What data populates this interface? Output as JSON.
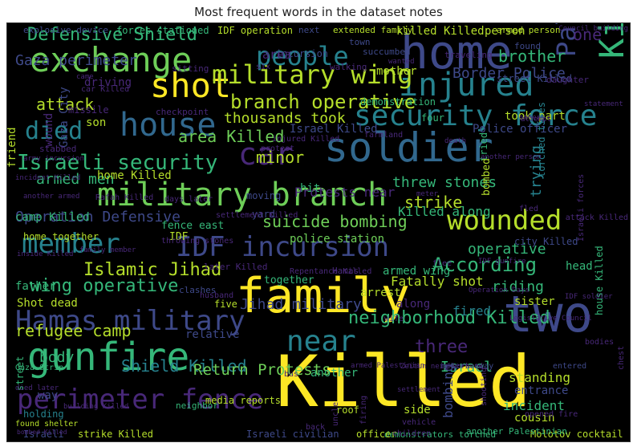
{
  "chart_data": {
    "type": "wordcloud",
    "title": "Most frequent words in the dataset notes",
    "palette": [
      "#fde725",
      "#b5de2b",
      "#6ece58",
      "#35b779",
      "#1f9e89",
      "#26828e",
      "#31688e",
      "#3e4989",
      "#482878",
      "#440154"
    ],
    "words": [
      {
        "text": "Killed",
        "weight": 100,
        "color": "#fde725"
      },
      {
        "text": "soldier",
        "weight": 78,
        "color": "#31688e"
      },
      {
        "text": "home",
        "weight": 72,
        "color": "#3e4989"
      },
      {
        "text": "family",
        "weight": 70,
        "color": "#fde725"
      },
      {
        "text": "gunfire",
        "weight": 62,
        "color": "#35b779"
      },
      {
        "text": "exchange",
        "weight": 62,
        "color": "#6ece58"
      },
      {
        "text": "house",
        "weight": 58,
        "color": "#31688e"
      },
      {
        "text": "two",
        "weight": 58,
        "color": "#3e4989"
      },
      {
        "text": "shot",
        "weight": 56,
        "color": "#fde725"
      },
      {
        "text": "Killed together",
        "weight": 55,
        "color": "#35b779"
      },
      {
        "text": "injured",
        "weight": 52,
        "color": "#26828e"
      },
      {
        "text": "security force",
        "weight": 50,
        "color": "#26828e"
      },
      {
        "text": "military branch",
        "weight": 48,
        "color": "#6ece58"
      },
      {
        "text": "near",
        "weight": 44,
        "color": "#26828e"
      },
      {
        "text": "Palestinian",
        "weight": 42,
        "color": "#3e4989"
      },
      {
        "text": "Hamas military",
        "weight": 40,
        "color": "#3e4989"
      },
      {
        "text": "member",
        "weight": 38,
        "color": "#26828e"
      },
      {
        "text": "IDF incursion",
        "weight": 38,
        "color": "#3e4989"
      },
      {
        "text": "military wing",
        "weight": 36,
        "color": "#b5de2b"
      },
      {
        "text": "perimeter fence",
        "weight": 36,
        "color": "#482878"
      },
      {
        "text": "wounded",
        "weight": 36,
        "color": "#b5de2b"
      },
      {
        "text": "car",
        "weight": 36,
        "color": "#482878"
      },
      {
        "text": "people",
        "weight": 34,
        "color": "#26828e"
      },
      {
        "text": "died",
        "weight": 32,
        "color": "#26828e"
      },
      {
        "text": "Israeli security",
        "weight": 30,
        "color": "#35b779"
      },
      {
        "text": "Defensive Shield",
        "weight": 28,
        "color": "#35b779"
      },
      {
        "text": "branch operative",
        "weight": 26,
        "color": "#b5de2b"
      },
      {
        "text": "Islamic Jihad",
        "weight": 25,
        "color": "#b5de2b"
      },
      {
        "text": "According",
        "weight": 25,
        "color": "#35b779"
      },
      {
        "text": "wing operative",
        "weight": 24,
        "color": "#35b779"
      },
      {
        "text": "refugee camp",
        "weight": 24,
        "color": "#b5de2b"
      },
      {
        "text": "neighborhood Killed",
        "weight": 24,
        "color": "#35b779"
      },
      {
        "text": "Operation Defensive",
        "weight": 23,
        "color": "#3e4989"
      },
      {
        "text": "suicide bombing",
        "weight": 22,
        "color": "#6ece58"
      },
      {
        "text": "area Killed",
        "weight": 22,
        "color": "#6ece58"
      },
      {
        "text": "brother",
        "weight": 22,
        "color": "#35b779"
      },
      {
        "text": "Border Police",
        "weight": 22,
        "color": "#3e4989"
      },
      {
        "text": "three",
        "weight": 22,
        "color": "#482878"
      },
      {
        "text": "Shield Killed",
        "weight": 20,
        "color": "#26828e"
      },
      {
        "text": "Return Protests",
        "weight": 19,
        "color": "#6ece58"
      },
      {
        "text": "one",
        "weight": 22,
        "color": "#482878"
      },
      {
        "text": "strike",
        "weight": 20,
        "color": "#b5de2b"
      },
      {
        "text": "threw stones",
        "weight": 20,
        "color": "#35b779"
      },
      {
        "text": "minor",
        "weight": 20,
        "color": "#b5de2b"
      },
      {
        "text": "Jihad military",
        "weight": 18,
        "color": "#3e4989"
      },
      {
        "text": "Gaza perimeter",
        "weight": 18,
        "color": "#3e4989"
      },
      {
        "text": "attack",
        "weight": 18,
        "color": "#b5de2b"
      },
      {
        "text": "armed men",
        "weight": 18,
        "color": "#35b779"
      },
      {
        "text": "thousands took",
        "weight": 18,
        "color": "#b5de2b"
      },
      {
        "text": "Israel",
        "weight": 18,
        "color": "#35b779"
      },
      {
        "text": "Killed along",
        "weight": 16,
        "color": "#35b779"
      },
      {
        "text": "operative",
        "weight": 18,
        "color": "#35b779"
      },
      {
        "text": "riding",
        "weight": 18,
        "color": "#35b779"
      },
      {
        "text": "body",
        "weight": 18,
        "color": "#35b779"
      },
      {
        "text": "incident",
        "weight": 16,
        "color": "#35b779"
      },
      {
        "text": "standing",
        "weight": 16,
        "color": "#b5de2b"
      },
      {
        "text": "bombing",
        "weight": 16,
        "color": "#3e4989"
      },
      {
        "text": "trying",
        "weight": 18,
        "color": "#26828e"
      },
      {
        "text": "Fatally shot",
        "weight": 14,
        "color": "#b5de2b"
      },
      {
        "text": "fired",
        "weight": 16,
        "color": "#26828e"
      },
      {
        "text": "Police officer",
        "weight": 14,
        "color": "#3e4989"
      },
      {
        "text": "took part",
        "weight": 14,
        "color": "#b5de2b"
      },
      {
        "text": "mother",
        "weight": 14,
        "color": "#b5de2b"
      },
      {
        "text": "person",
        "weight": 14,
        "color": "#b5de2b"
      },
      {
        "text": "demonstration",
        "weight": 12,
        "color": "#35b779"
      },
      {
        "text": "incursion",
        "weight": 12,
        "color": "#3e4989"
      },
      {
        "text": "Israel Killed",
        "weight": 13,
        "color": "#3e4989"
      },
      {
        "text": "killed Killed",
        "weight": 14,
        "color": "#b5de2b"
      },
      {
        "text": "police station",
        "weight": 13,
        "color": "#6ece58"
      },
      {
        "text": "armed wing",
        "weight": 13,
        "color": "#35b779"
      },
      {
        "text": "sister",
        "weight": 13,
        "color": "#b5de2b"
      },
      {
        "text": "head",
        "weight": 13,
        "color": "#35b779"
      },
      {
        "text": "house Killed",
        "weight": 12,
        "color": "#35b779"
      },
      {
        "text": "torched tires",
        "weight": 12,
        "color": "#26828e"
      },
      {
        "text": "four",
        "weight": 12,
        "color": "#35b779"
      },
      {
        "text": "city Killed",
        "weight": 11,
        "color": "#3e4989"
      },
      {
        "text": "home Killed",
        "weight": 12,
        "color": "#b5de2b"
      },
      {
        "text": "camp Killed",
        "weight": 12,
        "color": "#35b779"
      },
      {
        "text": "wound",
        "weight": 13,
        "color": "#482878"
      },
      {
        "text": "Gaza City",
        "weight": 12,
        "color": "#3e4989"
      },
      {
        "text": "friend",
        "weight": 12,
        "color": "#b5de2b"
      },
      {
        "text": "son",
        "weight": 12,
        "color": "#b5de2b"
      },
      {
        "text": "driving",
        "weight": 12,
        "color": "#482878"
      },
      {
        "text": "Shot dead",
        "weight": 12,
        "color": "#b5de2b"
      },
      {
        "text": "father",
        "weight": 12,
        "color": "#35b779"
      },
      {
        "text": "relative",
        "weight": 12,
        "color": "#3e4989"
      },
      {
        "text": "way",
        "weight": 12,
        "color": "#3e4989"
      },
      {
        "text": "another",
        "weight": 12,
        "color": "#35b779"
      },
      {
        "text": "side",
        "weight": 12,
        "color": "#b5de2b"
      },
      {
        "text": "cousin",
        "weight": 11,
        "color": "#b5de2b"
      },
      {
        "text": "entrance",
        "weight": 12,
        "color": "#3e4989"
      },
      {
        "text": "Israeli civilian",
        "weight": 11,
        "color": "#3e4989"
      },
      {
        "text": "strike Killed",
        "weight": 10,
        "color": "#b5de2b"
      },
      {
        "text": "Molotov cocktail",
        "weight": 10,
        "color": "#b5de2b"
      },
      {
        "text": "fence east",
        "weight": 12,
        "color": "#35b779"
      },
      {
        "text": "IDF operation",
        "weight": 11,
        "color": "#b5de2b"
      },
      {
        "text": "forces stationed",
        "weight": 11,
        "color": "#35b779"
      },
      {
        "text": "explosive device",
        "weight": 10,
        "color": "#3e4989"
      },
      {
        "text": "extended family",
        "weight": 9,
        "color": "#b5de2b"
      },
      {
        "text": "Israeli",
        "weight": 11,
        "color": "#3e4989"
      },
      {
        "text": "demonstrators torched",
        "weight": 9,
        "color": "#35b779"
      },
      {
        "text": "media reports",
        "weight": 10,
        "color": "#b5de2b"
      },
      {
        "text": "another Palestinian",
        "weight": 9,
        "color": "#35b779"
      },
      {
        "text": "home together",
        "weight": 10,
        "color": "#b5de2b"
      },
      {
        "text": "IDF",
        "weight": 12,
        "color": "#b5de2b"
      },
      {
        "text": "hit",
        "weight": 12,
        "color": "#35b779"
      },
      {
        "text": "arrest",
        "weight": 12,
        "color": "#b5de2b"
      },
      {
        "text": "together",
        "weight": 11,
        "color": "#35b779"
      },
      {
        "text": "along",
        "weight": 12,
        "color": "#482878"
      },
      {
        "text": "neighbor",
        "weight": 9,
        "color": "#35b779"
      },
      {
        "text": "roof",
        "weight": 10,
        "color": "#b5de2b"
      },
      {
        "text": "officer",
        "weight": 10,
        "color": "#b5de2b"
      },
      {
        "text": "holding",
        "weight": 10,
        "color": "#26828e"
      },
      {
        "text": "street",
        "weight": 10,
        "color": "#35b779"
      },
      {
        "text": "five",
        "weight": 10,
        "color": "#b5de2b"
      },
      {
        "text": "bombed",
        "weight": 10,
        "color": "#b5de2b"
      },
      {
        "text": "tried",
        "weight": 10,
        "color": "#35b779"
      },
      {
        "text": "street Killed",
        "weight": 10,
        "color": "#3e4989"
      },
      {
        "text": "armed person",
        "weight": 9,
        "color": "#b5de2b"
      },
      {
        "text": "Gaza Strip",
        "weight": 8,
        "color": "#35b779"
      },
      {
        "text": "found shelter",
        "weight": 8,
        "color": "#b5de2b"
      },
      {
        "text": "daughter",
        "weight": 9,
        "color": "#482878"
      },
      {
        "text": "missile",
        "weight": 10,
        "color": "#482878"
      },
      {
        "text": "clashes",
        "weight": 9,
        "color": "#3e4989"
      },
      {
        "text": "moving",
        "weight": 10,
        "color": "#3e4989"
      },
      {
        "text": "next",
        "weight": 9,
        "color": "#3e4989"
      },
      {
        "text": "found",
        "weight": 9,
        "color": "#3e4989"
      },
      {
        "text": "town",
        "weight": 9,
        "color": "#3e4989"
      },
      {
        "text": "succumbed",
        "weight": 9,
        "color": "#3e4989"
      },
      {
        "text": "area",
        "weight": 13,
        "color": "#482878"
      },
      {
        "text": "yard",
        "weight": 10,
        "color": "#3e4989"
      },
      {
        "text": "stabbed",
        "weight": 9,
        "color": "#482878"
      },
      {
        "text": "checkpoint",
        "weight": 9,
        "color": "#482878"
      },
      {
        "text": "traveling",
        "weight": 9,
        "color": "#482878"
      },
      {
        "text": "walking",
        "weight": 9,
        "color": "#482878"
      },
      {
        "text": "sitting",
        "weight": 9,
        "color": "#482878"
      },
      {
        "text": "bus",
        "weight": 8,
        "color": "#482878"
      },
      {
        "text": "flee",
        "weight": 8,
        "color": "#482878"
      },
      {
        "text": "fled",
        "weight": 8,
        "color": "#482878"
      },
      {
        "text": "Protests near",
        "weight": 12,
        "color": "#482878"
      },
      {
        "text": "Israeli forces",
        "weight": 8,
        "color": "#482878"
      },
      {
        "text": "attack Killed",
        "weight": 8,
        "color": "#482878"
      },
      {
        "text": "meters away",
        "weight": 9,
        "color": "#3e4989"
      },
      {
        "text": "vehicle",
        "weight": 8,
        "color": "#482878"
      },
      {
        "text": "shooting",
        "weight": 8,
        "color": "#482878"
      },
      {
        "text": "opened fire",
        "weight": 8,
        "color": "#482878"
      },
      {
        "text": "chest",
        "weight": 8,
        "color": "#482878"
      },
      {
        "text": "bodies",
        "weight": 8,
        "color": "#482878"
      },
      {
        "text": "children",
        "weight": 8,
        "color": "#482878"
      },
      {
        "text": "uncle",
        "weight": 8,
        "color": "#482878"
      },
      {
        "text": "firing",
        "weight": 8,
        "color": "#482878"
      },
      {
        "text": "back",
        "weight": 8,
        "color": "#482878"
      },
      {
        "text": "Rafah Killed",
        "weight": 8,
        "color": "#482878"
      },
      {
        "text": "days later",
        "weight": 8,
        "color": "#482878"
      },
      {
        "text": "later Killed",
        "weight": 9,
        "color": "#482878"
      },
      {
        "text": "Hamas",
        "weight": 9,
        "color": "#482878"
      },
      {
        "text": "farmland",
        "weight": 8,
        "color": "#482878"
      },
      {
        "text": "protest",
        "weight": 8,
        "color": "#482878"
      },
      {
        "text": "throwing stones",
        "weight": 8,
        "color": "#482878"
      },
      {
        "text": "settlement Killed",
        "weight": 8,
        "color": "#482878"
      },
      {
        "text": "injured Killed",
        "weight": 8,
        "color": "#482878"
      },
      {
        "text": "Repentance Killed",
        "weight": 8,
        "color": "#482878"
      },
      {
        "text": "Legislative Council",
        "weight": 7,
        "color": "#482878"
      },
      {
        "text": "Council building",
        "weight": 7,
        "color": "#482878"
      },
      {
        "text": "Zeitun neighborhood",
        "weight": 7,
        "color": "#482878"
      },
      {
        "text": "building Killed",
        "weight": 7,
        "color": "#482878"
      },
      {
        "text": "died later",
        "weight": 7,
        "color": "#482878"
      },
      {
        "text": "statement",
        "weight": 7,
        "color": "#482878"
      },
      {
        "text": "attempt",
        "weight": 7,
        "color": "#482878"
      },
      {
        "text": "death",
        "weight": 7,
        "color": "#482878"
      },
      {
        "text": "others",
        "weight": 7,
        "color": "#482878"
      },
      {
        "text": "another person",
        "weight": 7,
        "color": "#482878"
      },
      {
        "text": "army incursion",
        "weight": 7,
        "color": "#482878"
      },
      {
        "text": "IDF gunfire",
        "weight": 7,
        "color": "#482878"
      },
      {
        "text": "Operation Days",
        "weight": 7,
        "color": "#482878"
      },
      {
        "text": "husband",
        "weight": 8,
        "color": "#482878"
      },
      {
        "text": "wife",
        "weight": 8,
        "color": "#482878"
      },
      {
        "text": "six",
        "weight": 8,
        "color": "#482878"
      },
      {
        "text": "car Killed",
        "weight": 8,
        "color": "#482878"
      },
      {
        "text": "came",
        "weight": 7,
        "color": "#482878"
      },
      {
        "text": "wanted",
        "weight": 7,
        "color": "#482878"
      },
      {
        "text": "entered",
        "weight": 8,
        "color": "#3e4989"
      },
      {
        "text": "meter",
        "weight": 7,
        "color": "#482878"
      },
      {
        "text": "incident Killed",
        "weight": 7,
        "color": "#482878"
      },
      {
        "text": "another armed",
        "weight": 7,
        "color": "#482878"
      },
      {
        "text": "IDF soldier",
        "weight": 7,
        "color": "#482878"
      },
      {
        "text": "settlement",
        "weight": 7,
        "color": "#482878"
      },
      {
        "text": "armed Palestinian",
        "weight": 7,
        "color": "#482878"
      },
      {
        "text": "family member",
        "weight": 7,
        "color": "#482878"
      },
      {
        "text": "inside Killed",
        "weight": 7,
        "color": "#482878"
      },
      {
        "text": "bombed Killed",
        "weight": 7,
        "color": "#482878"
      }
    ]
  }
}
